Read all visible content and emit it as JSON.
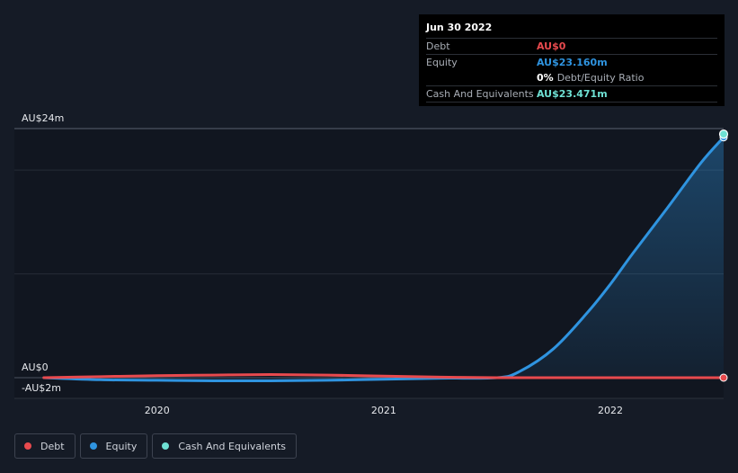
{
  "chart_data": {
    "type": "area",
    "title": "",
    "xlabel": "",
    "ylabel": "",
    "x": [
      2019.5,
      2019.75,
      2020.0,
      2020.25,
      2020.5,
      2020.75,
      2021.0,
      2021.25,
      2021.5,
      2021.6,
      2021.75,
      2021.9,
      2022.0,
      2022.1,
      2022.25,
      2022.4,
      2022.5
    ],
    "x_ticks": [
      "2020",
      "2021",
      "2022"
    ],
    "x_tick_values": [
      2020,
      2021,
      2022
    ],
    "xlim": [
      2019.37,
      2022.5
    ],
    "ylim": [
      -2,
      24
    ],
    "y_tick_labels": [
      {
        "value": 24,
        "label": "AU$24m"
      },
      {
        "value": 0,
        "label": "AU$0"
      },
      {
        "value": -2,
        "label": "-AU$2m"
      }
    ],
    "gridlines": [
      24,
      20,
      10,
      0
    ],
    "series": [
      {
        "name": "Debt",
        "color": "#e84a4e",
        "values": [
          0.0,
          0.1,
          0.2,
          0.25,
          0.3,
          0.25,
          0.15,
          0.05,
          0.0,
          0.0,
          0.0,
          0.0,
          0.0,
          0.0,
          0.0,
          0.0,
          0.0
        ]
      },
      {
        "name": "Equity",
        "color": "#2f94e0",
        "fill": true,
        "values": [
          0.0,
          -0.2,
          -0.25,
          -0.3,
          -0.3,
          -0.25,
          -0.15,
          -0.05,
          0.0,
          0.6,
          2.8,
          6.3,
          9.0,
          12.0,
          16.3,
          20.7,
          23.16
        ]
      },
      {
        "name": "Cash And Equivalents",
        "color": "#6ee0d3",
        "values": [
          null,
          null,
          null,
          null,
          null,
          null,
          null,
          null,
          null,
          null,
          null,
          null,
          null,
          null,
          null,
          null,
          23.471
        ]
      }
    ]
  },
  "tooltip": {
    "date": "Jun 30 2022",
    "rows": [
      {
        "label": "Debt",
        "value": "AU$0",
        "color": "#e84a4e"
      },
      {
        "label": "Equity",
        "value": "AU$23.160m",
        "color": "#2f94e0"
      }
    ],
    "ratio_value": "0%",
    "ratio_label": "Debt/Equity Ratio",
    "cash": {
      "label": "Cash And Equivalents",
      "value": "AU$23.471m",
      "color": "#6ee0d3"
    }
  },
  "legend": [
    {
      "label": "Debt",
      "color": "#e84a4e"
    },
    {
      "label": "Equity",
      "color": "#2f94e0"
    },
    {
      "label": "Cash And Equivalents",
      "color": "#6ee0d3"
    }
  ]
}
